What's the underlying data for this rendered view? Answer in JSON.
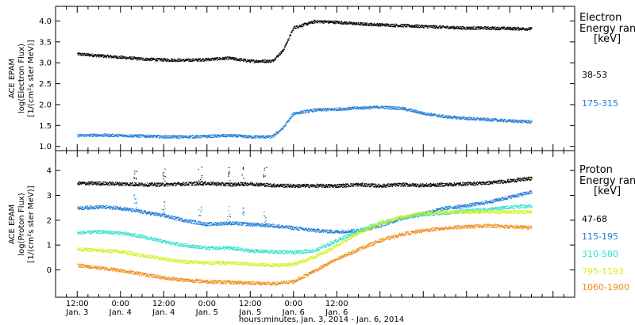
{
  "chart_data": [
    {
      "type": "scatter",
      "panel": "electron",
      "ylabel_lines": [
        "ACE EPAM",
        "log(Electron Flux)",
        "[1/(cm²s ster MeV)]"
      ],
      "ylim": [
        0.9,
        4.35
      ],
      "yticks": [
        "1.0",
        "1.5",
        "2.0",
        "2.5",
        "3.0",
        "3.5",
        "4.0"
      ],
      "legend_title": [
        "Electron",
        "Energy range",
        "[keV]"
      ],
      "series": [
        {
          "name": "38-53",
          "color": "#000000",
          "x": [
            0,
            6,
            12,
            18,
            24,
            30,
            36,
            42,
            48,
            54,
            57,
            60,
            66,
            72,
            78,
            84,
            90,
            96,
            102,
            108,
            114,
            120,
            126
          ],
          "y": [
            3.22,
            3.18,
            3.14,
            3.1,
            3.08,
            3.07,
            3.09,
            3.12,
            3.05,
            3.05,
            3.3,
            3.85,
            4.0,
            3.98,
            3.94,
            3.92,
            3.9,
            3.88,
            3.86,
            3.84,
            3.84,
            3.83,
            3.82
          ]
        },
        {
          "name": "175-315",
          "color": "#1b7bd6",
          "x": [
            0,
            6,
            12,
            18,
            24,
            30,
            36,
            42,
            48,
            54,
            57,
            60,
            66,
            72,
            78,
            84,
            90,
            96,
            102,
            108,
            114,
            120,
            126
          ],
          "y": [
            1.27,
            1.28,
            1.27,
            1.26,
            1.24,
            1.24,
            1.25,
            1.27,
            1.24,
            1.24,
            1.45,
            1.8,
            1.88,
            1.9,
            1.93,
            1.95,
            1.92,
            1.8,
            1.72,
            1.68,
            1.65,
            1.62,
            1.6
          ]
        }
      ]
    },
    {
      "type": "scatter",
      "panel": "proton",
      "ylabel_lines": [
        "ACE EPAM",
        "log(Proton Flux)",
        "[1/(cm²s ster MeV)]"
      ],
      "ylim": [
        -1.1,
        4.8
      ],
      "yticks": [
        "0",
        "1",
        "2",
        "3",
        "4"
      ],
      "legend_title": [
        "Proton",
        "Energy range",
        "[keV]"
      ],
      "series": [
        {
          "name": "47-68",
          "color": "#000000",
          "x": [
            0,
            6,
            12,
            18,
            24,
            30,
            36,
            42,
            48,
            54,
            60,
            66,
            72,
            78,
            84,
            90,
            96,
            102,
            108,
            114,
            120,
            126
          ],
          "y": [
            3.5,
            3.5,
            3.48,
            3.45,
            3.45,
            3.48,
            3.5,
            3.45,
            3.48,
            3.42,
            3.4,
            3.4,
            3.4,
            3.45,
            3.4,
            3.45,
            3.42,
            3.45,
            3.48,
            3.52,
            3.6,
            3.7
          ]
        },
        {
          "name": "115-195",
          "color": "#1b7bd6",
          "x": [
            0,
            6,
            12,
            18,
            24,
            30,
            36,
            42,
            48,
            54,
            60,
            66,
            72,
            78,
            84,
            90,
            96,
            102,
            108,
            114,
            120,
            126
          ],
          "y": [
            2.5,
            2.55,
            2.5,
            2.35,
            2.2,
            2.0,
            1.85,
            1.9,
            1.85,
            1.8,
            1.7,
            1.6,
            1.55,
            1.6,
            1.8,
            2.1,
            2.3,
            2.5,
            2.6,
            2.75,
            2.95,
            3.15
          ]
        },
        {
          "name": "310-580",
          "color": "#2ee0d0",
          "x": [
            0,
            6,
            12,
            18,
            24,
            30,
            36,
            42,
            48,
            54,
            60,
            66,
            72,
            78,
            84,
            90,
            96,
            102,
            108,
            114,
            120,
            126
          ],
          "y": [
            1.5,
            1.55,
            1.5,
            1.35,
            1.15,
            1.0,
            0.9,
            0.9,
            0.78,
            0.75,
            0.72,
            0.8,
            1.2,
            1.6,
            1.9,
            2.1,
            2.25,
            2.3,
            2.4,
            2.45,
            2.55,
            2.6
          ]
        },
        {
          "name": "795-1193",
          "color": "#d6f021",
          "x": [
            0,
            6,
            12,
            18,
            24,
            30,
            36,
            42,
            48,
            54,
            60,
            66,
            72,
            78,
            84,
            90,
            96,
            102,
            108,
            114,
            120,
            126
          ],
          "y": [
            0.85,
            0.8,
            0.75,
            0.6,
            0.45,
            0.35,
            0.3,
            0.3,
            0.25,
            0.2,
            0.25,
            0.55,
            1.0,
            1.5,
            1.9,
            2.15,
            2.3,
            2.35,
            2.35,
            2.35,
            2.35,
            2.35
          ]
        },
        {
          "name": "1060-1900",
          "color": "#ef8a17",
          "x": [
            0,
            6,
            12,
            18,
            24,
            30,
            36,
            42,
            48,
            54,
            60,
            66,
            72,
            78,
            84,
            90,
            96,
            102,
            108,
            114,
            120,
            126
          ],
          "y": [
            0.2,
            0.1,
            0.0,
            -0.15,
            -0.3,
            -0.4,
            -0.45,
            -0.48,
            -0.5,
            -0.55,
            -0.45,
            0.0,
            0.45,
            0.85,
            1.2,
            1.45,
            1.6,
            1.7,
            1.75,
            1.8,
            1.75,
            1.72
          ]
        }
      ]
    }
  ],
  "x_axis": {
    "tick_labels_time": [
      "12:00",
      "0:00",
      "12:00",
      "0:00",
      "12:00",
      "0:00",
      "12:00"
    ],
    "tick_labels_date": [
      "Jan. 3",
      "Jan. 4",
      "Jan. 4",
      "Jan. 5",
      "Jan. 5",
      "Jan. 6",
      "Jan. 6"
    ],
    "xlabel": "hours:minutes, Jan.  3, 2014 - Jan.  6, 2014"
  }
}
